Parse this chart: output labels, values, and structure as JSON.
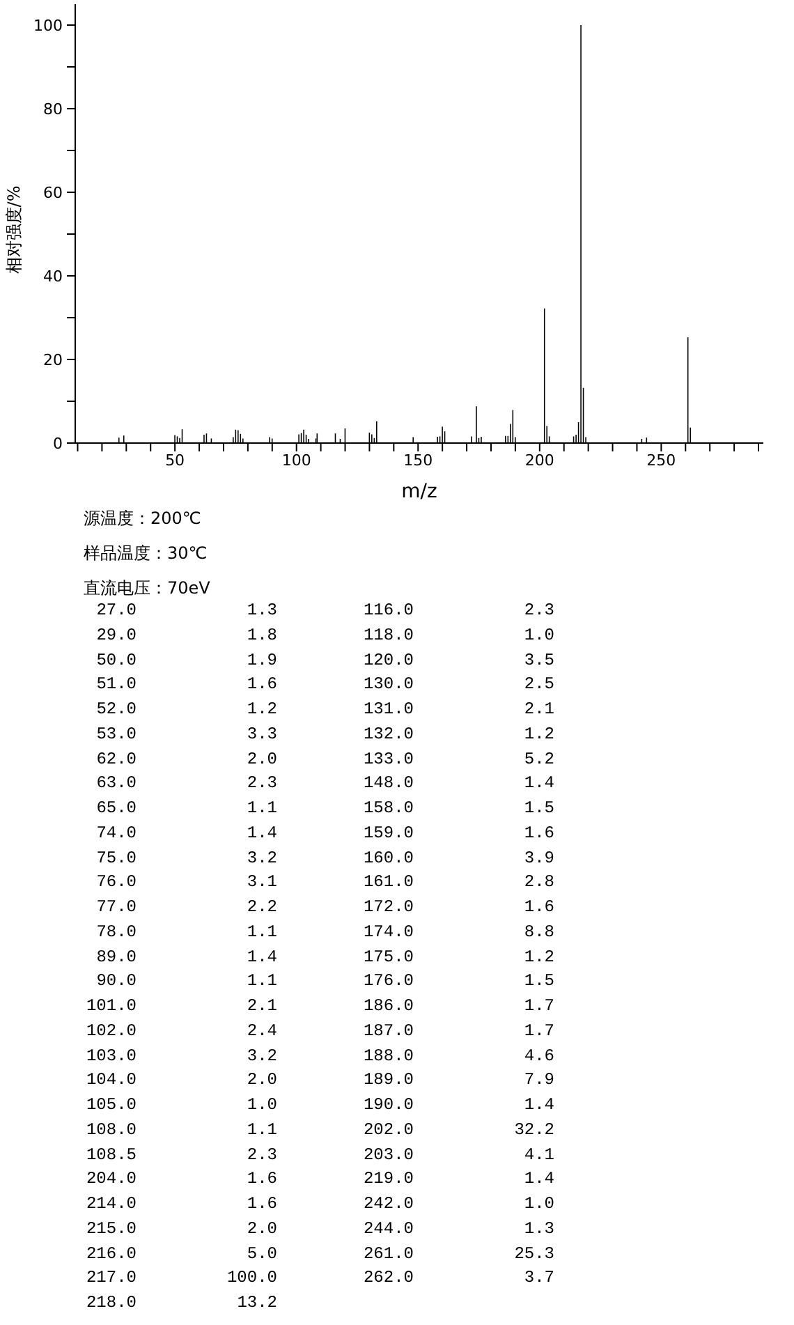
{
  "chart_data": [
    {
      "type": "bar",
      "xlabel": "m/z",
      "ylabel": "相对强度/%",
      "x": [
        27,
        29,
        50,
        51,
        52,
        53,
        62,
        63,
        65,
        74,
        75,
        76,
        77,
        78,
        89,
        90,
        101,
        102,
        103,
        104,
        105,
        108,
        108.5,
        116,
        118,
        120,
        130,
        131,
        132,
        133,
        148,
        158,
        159,
        160,
        161,
        172,
        174,
        175,
        176,
        186,
        187,
        188,
        189,
        190,
        202,
        203,
        204,
        214,
        215,
        216,
        217,
        218,
        219,
        242,
        244,
        261,
        262
      ],
      "values": [
        1.3,
        1.8,
        1.9,
        1.6,
        1.2,
        3.3,
        2.0,
        2.3,
        1.1,
        1.4,
        3.2,
        3.1,
        2.2,
        1.1,
        1.4,
        1.1,
        2.1,
        2.4,
        3.2,
        2.0,
        1.0,
        1.1,
        2.3,
        2.3,
        1.0,
        3.5,
        2.5,
        2.1,
        1.2,
        5.2,
        1.4,
        1.5,
        1.6,
        3.9,
        2.8,
        1.6,
        8.8,
        1.2,
        1.5,
        1.7,
        1.7,
        4.6,
        7.9,
        1.4,
        32.2,
        4.1,
        1.6,
        1.6,
        2.0,
        5.0,
        100.0,
        13.2,
        1.4,
        1.0,
        1.3,
        25.3,
        3.7
      ],
      "color": "#000000",
      "xlim": [
        9,
        292
      ],
      "xticks": [
        {
          "value": 10,
          "label": null
        },
        {
          "value": 20,
          "label": null
        },
        {
          "value": 30,
          "label": null
        },
        {
          "value": 40,
          "label": null
        },
        50,
        {
          "value": 60,
          "label": null
        },
        {
          "value": 70,
          "label": null
        },
        {
          "value": 80,
          "label": null
        },
        {
          "value": 90,
          "label": null
        },
        100,
        {
          "value": 110,
          "label": null
        },
        {
          "value": 120,
          "label": null
        },
        {
          "value": 130,
          "label": null
        },
        {
          "value": 140,
          "label": null
        },
        150,
        {
          "value": 160,
          "label": null
        },
        {
          "value": 170,
          "label": null
        },
        {
          "value": 180,
          "label": null
        },
        {
          "value": 190,
          "label": null
        },
        200,
        {
          "value": 210,
          "label": null
        },
        {
          "value": 220,
          "label": null
        },
        {
          "value": 230,
          "label": null
        },
        {
          "value": 240,
          "label": null
        },
        250,
        {
          "value": 260,
          "label": null
        },
        {
          "value": 270,
          "label": null
        },
        {
          "value": 280,
          "label": null
        },
        {
          "value": 290,
          "label": null
        }
      ],
      "ylim": [
        0,
        105
      ],
      "yticks": [
        0,
        {
          "value": 10,
          "label": null
        },
        20,
        {
          "value": 30,
          "label": null
        },
        40,
        {
          "value": 50,
          "label": null
        },
        60,
        {
          "value": 70,
          "label": null
        },
        80,
        {
          "value": 90,
          "label": null
        },
        100
      ],
      "grid": false,
      "legend": false,
      "annotations": [
        "源温度：200℃",
        "样品温度：30℃",
        "直流电压：70eV"
      ]
    },
    {
      "type": "other",
      "categories": [
        "27.0",
        "29.0",
        "50.0",
        "51.0",
        "52.0",
        "53.0",
        "62.0",
        "63.0",
        "65.0",
        "74.0",
        "75.0",
        "76.0",
        "77.0",
        "78.0",
        "89.0",
        "90.0",
        "101.0",
        "102.0",
        "103.0",
        "104.0",
        "105.0",
        "108.0",
        "108.5",
        "204.0",
        "214.0",
        "215.0",
        "216.0",
        "217.0",
        "218.0",
        "116.0",
        "118.0",
        "120.0",
        "130.0",
        "131.0",
        "132.0",
        "133.0",
        "148.0",
        "158.0",
        "159.0",
        "160.0",
        "161.0",
        "172.0",
        "174.0",
        "175.0",
        "176.0",
        "186.0",
        "187.0",
        "188.0",
        "189.0",
        "190.0",
        "202.0",
        "203.0",
        "219.0",
        "242.0",
        "244.0",
        "261.0",
        "262.0"
      ],
      "value_labels": [
        "1.3",
        "1.8",
        "1.9",
        "1.6",
        "1.2",
        "3.3",
        "2.0",
        "2.3",
        "1.1",
        "1.4",
        "3.2",
        "3.1",
        "2.2",
        "1.1",
        "1.4",
        "1.1",
        "2.1",
        "2.4",
        "3.2",
        "2.0",
        "1.0",
        "1.1",
        "2.3",
        "1.6",
        "1.6",
        "2.0",
        "5.0",
        "100.0",
        "13.2",
        "2.3",
        "1.0",
        "3.5",
        "2.5",
        "2.1",
        "1.2",
        "5.2",
        "1.4",
        "1.5",
        "1.6",
        "3.9",
        "2.8",
        "1.6",
        "8.8",
        "1.2",
        "1.5",
        "1.7",
        "1.7",
        "4.6",
        "7.9",
        "1.4",
        "32.2",
        "4.1",
        "1.4",
        "1.0",
        "1.3",
        "25.3",
        "3.7"
      ]
    }
  ]
}
